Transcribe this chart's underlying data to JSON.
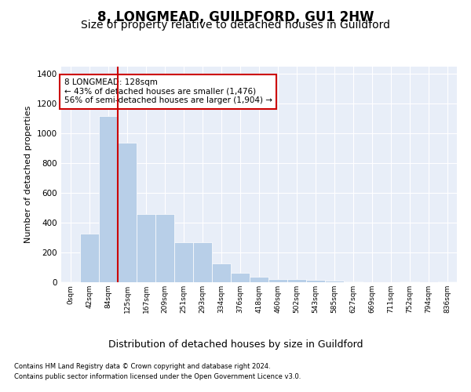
{
  "title": "8, LONGMEAD, GUILDFORD, GU1 2HW",
  "subtitle": "Size of property relative to detached houses in Guildford",
  "xlabel": "Distribution of detached houses by size in Guildford",
  "ylabel": "Number of detached properties",
  "footnote1": "Contains HM Land Registry data © Crown copyright and database right 2024.",
  "footnote2": "Contains public sector information licensed under the Open Government Licence v3.0.",
  "bar_labels": [
    "0sqm",
    "42sqm",
    "84sqm",
    "125sqm",
    "167sqm",
    "209sqm",
    "251sqm",
    "293sqm",
    "334sqm",
    "376sqm",
    "418sqm",
    "460sqm",
    "502sqm",
    "543sqm",
    "585sqm",
    "627sqm",
    "669sqm",
    "711sqm",
    "752sqm",
    "794sqm",
    "836sqm"
  ],
  "bar_values": [
    5,
    325,
    1120,
    940,
    460,
    460,
    270,
    270,
    125,
    65,
    35,
    20,
    20,
    15,
    10,
    5,
    0,
    0,
    5,
    0,
    5
  ],
  "bar_color": "#b8cfe8",
  "vline_x": 3,
  "vline_color": "#cc0000",
  "annotation_line1": "8 LONGMEAD: 128sqm",
  "annotation_line2": "← 43% of detached houses are smaller (1,476)",
  "annotation_line3": "56% of semi-detached houses are larger (1,904) →",
  "annotation_box_edgecolor": "#cc0000",
  "ylim": [
    0,
    1450
  ],
  "yticks": [
    0,
    200,
    400,
    600,
    800,
    1000,
    1200,
    1400
  ],
  "bg_color": "#e8eef8",
  "title_fontsize": 12,
  "subtitle_fontsize": 10,
  "xlabel_fontsize": 9,
  "ylabel_fontsize": 8
}
